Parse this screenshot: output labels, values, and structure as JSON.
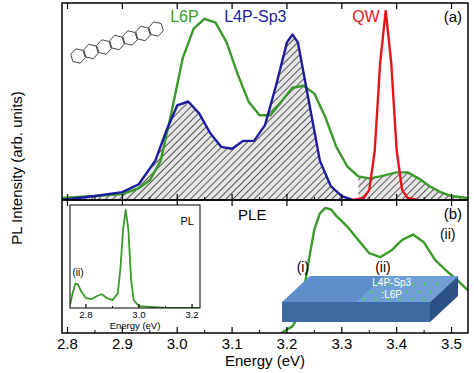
{
  "chart_data": [
    {
      "type": "line",
      "panel_label": "(a)",
      "ylabel": "PL Intensity (arb. units)",
      "xlim": [
        2.79,
        3.53
      ],
      "ylim": [
        0,
        1
      ],
      "xticks": [
        2.8,
        2.9,
        {
          "value": 3.0,
          "label": "3.0"
        },
        3.1,
        3.2,
        3.3,
        3.4,
        3.5
      ],
      "tick_labels": false,
      "series": [
        {
          "name": "L6P",
          "color": "#3a9a2a",
          "x": [
            2.79,
            2.85,
            2.9,
            2.93,
            2.95,
            2.97,
            2.99,
            3.01,
            3.03,
            3.05,
            3.07,
            3.09,
            3.11,
            3.13,
            3.15,
            3.17,
            3.19,
            3.21,
            3.23,
            3.25,
            3.27,
            3.29,
            3.31,
            3.33,
            3.35,
            3.37,
            3.4,
            3.42,
            3.44,
            3.46,
            3.48,
            3.5,
            3.53
          ],
          "values": [
            0.01,
            0.02,
            0.03,
            0.06,
            0.1,
            0.2,
            0.45,
            0.72,
            0.87,
            0.92,
            0.9,
            0.8,
            0.64,
            0.5,
            0.43,
            0.43,
            0.5,
            0.57,
            0.58,
            0.54,
            0.42,
            0.27,
            0.17,
            0.12,
            0.11,
            0.12,
            0.14,
            0.14,
            0.11,
            0.07,
            0.04,
            0.02,
            0.01
          ]
        },
        {
          "name": "L4P-Sp3",
          "color": "#1c1c9e",
          "x": [
            2.79,
            2.85,
            2.9,
            2.93,
            2.96,
            2.98,
            3.0,
            3.02,
            3.04,
            3.06,
            3.08,
            3.1,
            3.12,
            3.14,
            3.16,
            3.18,
            3.2,
            3.21,
            3.22,
            3.24,
            3.26,
            3.28,
            3.3,
            3.32
          ],
          "values": [
            0.0,
            0.02,
            0.04,
            0.08,
            0.2,
            0.35,
            0.48,
            0.5,
            0.44,
            0.34,
            0.27,
            0.26,
            0.3,
            0.3,
            0.38,
            0.58,
            0.8,
            0.84,
            0.8,
            0.5,
            0.2,
            0.07,
            0.02,
            0.0
          ]
        },
        {
          "name": "QW",
          "color": "#e8141a",
          "x": [
            3.32,
            3.34,
            3.35,
            3.36,
            3.37,
            3.38,
            3.39,
            3.4,
            3.41,
            3.42,
            3.44
          ],
          "values": [
            0,
            0.01,
            0.05,
            0.25,
            0.7,
            0.96,
            0.7,
            0.25,
            0.05,
            0.01,
            0
          ]
        }
      ]
    },
    {
      "type": "line",
      "panel_label": "(b)",
      "xlabel": "Energy (eV)",
      "xlim": [
        2.79,
        3.53
      ],
      "ylim": [
        0,
        1
      ],
      "xticks": [
        2.8,
        2.9,
        {
          "value": 3.0,
          "label": "3.0"
        },
        3.1,
        3.2,
        3.3,
        3.4,
        3.5
      ],
      "tick_labels": "x",
      "series": [
        {
          "name": "PLE",
          "color": "#3a9a2a",
          "x": [
            3.19,
            3.21,
            3.22,
            3.23,
            3.24,
            3.25,
            3.26,
            3.27,
            3.28,
            3.29,
            3.31,
            3.33,
            3.35,
            3.37,
            3.39,
            3.41,
            3.43,
            3.45,
            3.47,
            3.49,
            3.51,
            3.53
          ],
          "values": [
            0.0,
            0.05,
            0.12,
            0.3,
            0.55,
            0.78,
            0.9,
            0.94,
            0.93,
            0.88,
            0.8,
            0.7,
            0.6,
            0.57,
            0.62,
            0.7,
            0.74,
            0.68,
            0.55,
            0.47,
            0.4,
            0.32
          ]
        }
      ],
      "annotations": [
        {
          "text": "(i)",
          "x": 3.229,
          "y": 0.46
        },
        {
          "text": "(ii)",
          "x": 3.375,
          "y": 0.46
        },
        {
          "text": "(ii)",
          "x": 3.493,
          "y": 0.71
        },
        {
          "text": "L4P-Sp3",
          "x": 3.391,
          "y": 0.353
        },
        {
          "text": ":L6P",
          "x": 3.391,
          "y": 0.263
        }
      ]
    },
    {
      "type": "line",
      "xlabel": "Energy (eV)",
      "xlim": [
        2.74,
        3.23
      ],
      "ylim": [
        0,
        1.05
      ],
      "xticks": [
        2.8,
        {
          "value": 3.0,
          "label": "3.0"
        },
        3.2
      ],
      "tick_labels": "x",
      "series": [
        {
          "name": "PL",
          "color": "#3a9a2a",
          "x": [
            2.74,
            2.75,
            2.76,
            2.77,
            2.78,
            2.8,
            2.82,
            2.84,
            2.86,
            2.88,
            2.9,
            2.92,
            2.93,
            2.94,
            2.95,
            2.96,
            2.97,
            2.98,
            3.0,
            3.1,
            3.23
          ],
          "values": [
            0.03,
            0.15,
            0.25,
            0.24,
            0.18,
            0.1,
            0.09,
            0.12,
            0.14,
            0.1,
            0.08,
            0.15,
            0.4,
            0.8,
            1.0,
            0.8,
            0.3,
            0.08,
            0.02,
            0.0,
            0.0
          ]
        }
      ],
      "annotations": [
        {
          "text": "(ii)",
          "x": 2.77,
          "y": 0.33
        }
      ]
    }
  ]
}
